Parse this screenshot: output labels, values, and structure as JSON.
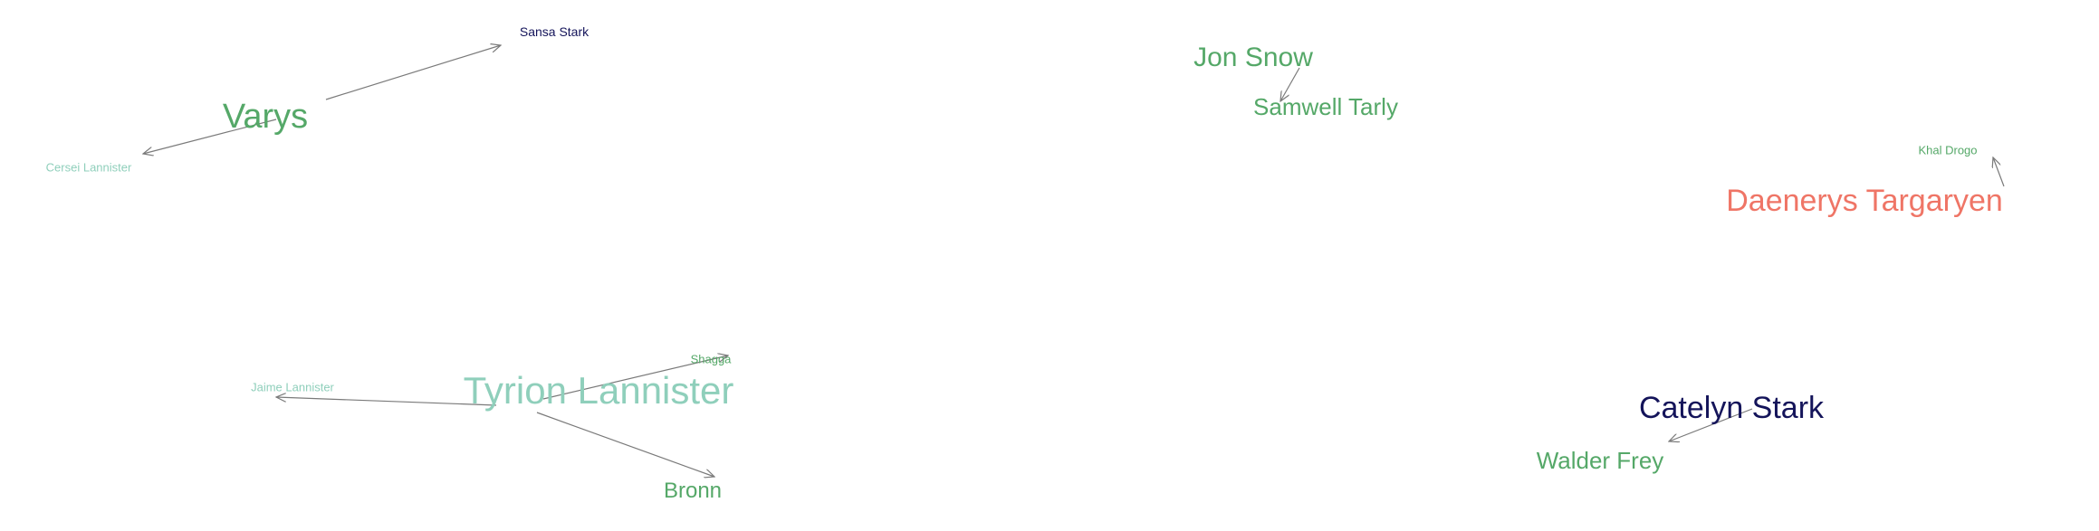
{
  "colors": {
    "green": "#55a868",
    "teal": "#8fcfbb",
    "navy": "#14145a",
    "salmon": "#ef7566",
    "edge": "#7a7a7a"
  },
  "nodes": [
    {
      "id": "sansa",
      "label": "Sansa Stark",
      "color": "navy"
    },
    {
      "id": "varys",
      "label": "Varys",
      "color": "green"
    },
    {
      "id": "cersei",
      "label": "Cersei Lannister",
      "color": "teal"
    },
    {
      "id": "jon",
      "label": "Jon Snow",
      "color": "green"
    },
    {
      "id": "samwell",
      "label": "Samwell Tarly",
      "color": "green"
    },
    {
      "id": "drogo",
      "label": "Khal Drogo",
      "color": "green"
    },
    {
      "id": "daenerys",
      "label": "Daenerys Targaryen",
      "color": "salmon"
    },
    {
      "id": "shagga",
      "label": "Shagga",
      "color": "green"
    },
    {
      "id": "jaime",
      "label": "Jaime Lannister",
      "color": "teal"
    },
    {
      "id": "tyrion",
      "label": "Tyrion Lannister",
      "color": "teal"
    },
    {
      "id": "bronn",
      "label": "Bronn",
      "color": "green"
    },
    {
      "id": "catelyn",
      "label": "Catelyn Stark",
      "color": "navy"
    },
    {
      "id": "walder",
      "label": "Walder Frey",
      "color": "green"
    }
  ],
  "edges": [
    {
      "source": "varys",
      "target": "sansa"
    },
    {
      "source": "varys",
      "target": "cersei"
    },
    {
      "source": "jon",
      "target": "samwell"
    },
    {
      "source": "daenerys",
      "target": "drogo"
    },
    {
      "source": "tyrion",
      "target": "shagga"
    },
    {
      "source": "tyrion",
      "target": "jaime"
    },
    {
      "source": "tyrion",
      "target": "bronn"
    },
    {
      "source": "catelyn",
      "target": "walder"
    }
  ]
}
